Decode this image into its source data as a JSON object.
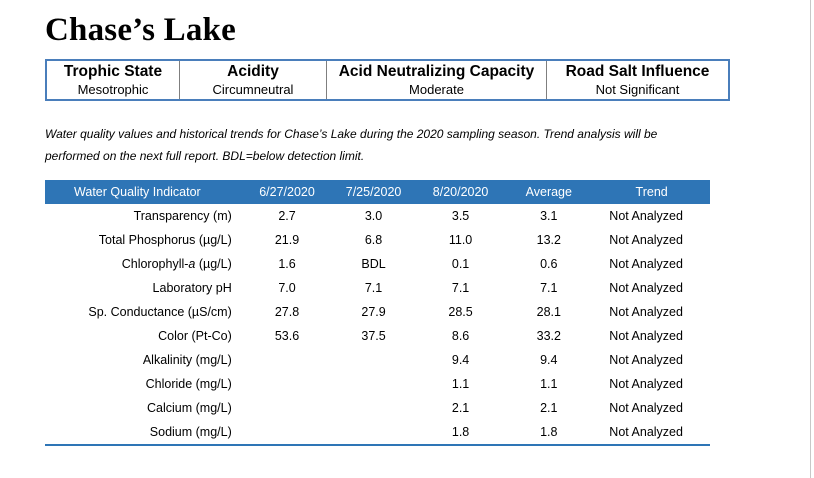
{
  "title": "Chase’s Lake",
  "summary": [
    {
      "heading": "Trophic State",
      "value": "Mesotrophic"
    },
    {
      "heading": "Acidity",
      "value": "Circumneutral"
    },
    {
      "heading": "Acid Neutralizing Capacity",
      "value": "Moderate"
    },
    {
      "heading": "Road Salt Influence",
      "value": "Not Significant"
    }
  ],
  "caption_line1": "Water quality values and historical trends for Chase’s Lake during the 2020 sampling season. Trend analysis will be",
  "caption_line2": "performed on the next full report. BDL=below detection limit.",
  "table": {
    "headers": [
      "Water Quality Indicator",
      "6/27/2020",
      "7/25/2020",
      "8/20/2020",
      "Average",
      "Trend"
    ],
    "rows": [
      [
        "Transparency (m)",
        "2.7",
        "3.0",
        "3.5",
        "3.1",
        "Not Analyzed"
      ],
      [
        "Total Phosphorus (µg/L)",
        "21.9",
        "6.8",
        "11.0",
        "13.2",
        "Not Analyzed"
      ],
      [
        "Chlorophyll-a (µg/L)",
        "1.6",
        "BDL",
        "0.1",
        "0.6",
        "Not Analyzed"
      ],
      [
        "Laboratory pH",
        "7.0",
        "7.1",
        "7.1",
        "7.1",
        "Not Analyzed"
      ],
      [
        "Sp. Conductance (µS/cm)",
        "27.8",
        "27.9",
        "28.5",
        "28.1",
        "Not Analyzed"
      ],
      [
        "Color (Pt-Co)",
        "53.6",
        "37.5",
        "8.6",
        "33.2",
        "Not Analyzed"
      ],
      [
        "Alkalinity (mg/L)",
        "",
        "",
        "9.4",
        "9.4",
        "Not Analyzed"
      ],
      [
        "Chloride (mg/L)",
        "",
        "",
        "1.1",
        "1.1",
        "Not Analyzed"
      ],
      [
        "Calcium (mg/L)",
        "",
        "",
        "2.1",
        "2.1",
        "Not Analyzed"
      ],
      [
        "Sodium (mg/L)",
        "",
        "",
        "1.8",
        "1.8",
        "Not Analyzed"
      ]
    ]
  }
}
